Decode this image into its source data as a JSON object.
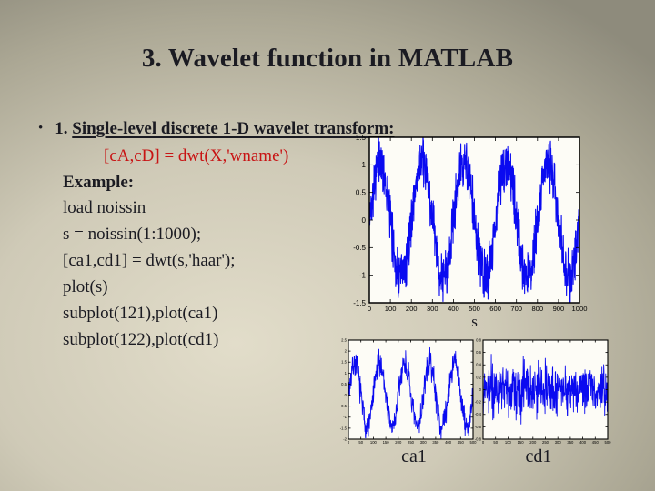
{
  "slide": {
    "title": "3. Wavelet function in MATLAB",
    "bullet": {
      "marker": "•",
      "prefix": "1. ",
      "underlined": "Single-level discrete 1-D wavelet transform:"
    },
    "code_highlight": "[cA,cD] = dwt(X,'wname')",
    "example_label": "Example:",
    "code_lines": [
      "load noissin",
      "s = noissin(1:1000);",
      "[ca1,cd1] = dwt(s,'haar');",
      "plot(s)",
      "subplot(121),plot(ca1)",
      "subplot(122),plot(cd1)"
    ],
    "colors": {
      "text": "#1b1b22",
      "highlight": "#c81414",
      "background_center": "#e2ddca",
      "background_edge": "#8e8b7c",
      "plot_line": "#0a0af0",
      "plot_background": "#fdfcf6",
      "axis": "#000000"
    }
  },
  "chart_data": [
    {
      "id": "s",
      "type": "line",
      "title": "",
      "xlabel": "s",
      "ylabel": "",
      "caption": "",
      "xlim": [
        0,
        1000
      ],
      "ylim": [
        -1.5,
        1.5
      ],
      "xticks": [
        0,
        100,
        200,
        300,
        400,
        500,
        600,
        700,
        800,
        900,
        1000
      ],
      "yticks": [
        -1.5,
        -1,
        -0.5,
        0,
        0.5,
        1,
        1.5
      ],
      "grid": false,
      "legend": "none",
      "series": [
        {
          "name": "s (noisy sinusoid, 5 cycles)",
          "color": "#0a0af0",
          "signal": {
            "kind": "noisy_sine",
            "n": 1000,
            "period": 200,
            "phase": 0,
            "amplitude": 1.04,
            "noise": 0.55,
            "seed": 42
          }
        }
      ]
    },
    {
      "id": "ca1",
      "type": "line",
      "title": "",
      "xlabel": "",
      "ylabel": "",
      "caption": "ca1",
      "xlim": [
        0,
        500
      ],
      "ylim": [
        -2,
        2.5
      ],
      "xticks": [
        0,
        50,
        100,
        150,
        200,
        250,
        300,
        350,
        400,
        450,
        500
      ],
      "yticks": [
        -2,
        -1.5,
        -1,
        -0.5,
        0,
        0.5,
        1,
        1.5,
        2,
        2.5
      ],
      "grid": false,
      "legend": "none",
      "series": [
        {
          "name": "ca1 (approximation coefficients, noisy sinusoid, 5 cycles)",
          "color": "#0a0af0",
          "signal": {
            "kind": "noisy_sine",
            "n": 500,
            "period": 100,
            "phase": 0,
            "amplitude": 1.45,
            "noise": 0.75,
            "seed": 7
          }
        }
      ]
    },
    {
      "id": "cd1",
      "type": "line",
      "title": "",
      "xlabel": "",
      "ylabel": "",
      "caption": "cd1",
      "xlim": [
        0,
        500
      ],
      "ylim": [
        -0.8,
        0.8
      ],
      "xticks": [
        0,
        50,
        100,
        150,
        200,
        250,
        300,
        350,
        400,
        450,
        500
      ],
      "yticks": [
        -0.8,
        -0.6,
        -0.4,
        -0.2,
        0,
        0.2,
        0.4,
        0.6,
        0.8
      ],
      "grid": false,
      "legend": "none",
      "series": [
        {
          "name": "cd1 (detail coefficients, zero-mean noise)",
          "color": "#0a0af0",
          "signal": {
            "kind": "noise",
            "n": 500,
            "scale": 0.36,
            "seed": 99
          }
        }
      ]
    }
  ]
}
